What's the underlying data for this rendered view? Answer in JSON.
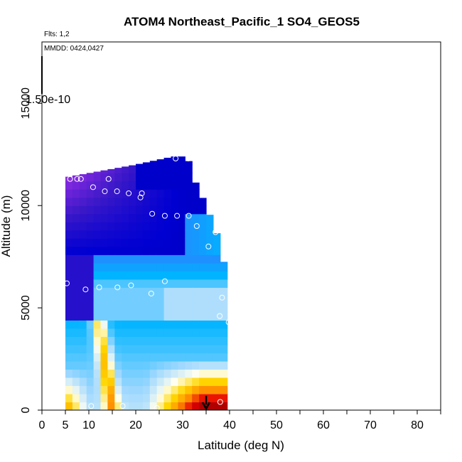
{
  "chart_data": {
    "type": "heatmap",
    "title": "ATOM4 Northeast_Pacific_1 SO4_GEOS5",
    "annotations": {
      "flights": "Flts: 1,2",
      "dates": "MMDD: 0424,0427"
    },
    "colorbar_label": "1.50e-10",
    "xlabel": "Latitude (deg N)",
    "ylabel": "Altitude (m)",
    "xlim": [
      0,
      85
    ],
    "ylim": [
      0,
      18000
    ],
    "x_ticks": [
      0,
      5,
      10,
      20,
      30,
      40,
      50,
      60,
      70,
      80
    ],
    "x_minor_ticks": [
      15,
      25,
      35,
      45,
      55,
      65,
      75,
      85
    ],
    "y_ticks": [
      0,
      5000,
      10000,
      15000
    ],
    "colormap": [
      "#000096",
      "#0000d2",
      "#3a18c8",
      "#8a2be2",
      "#1e90ff",
      "#00b4ff",
      "#a0d8ff",
      "#fffff0",
      "#ffd700",
      "#ff8c00",
      "#e60000",
      "#a00000"
    ],
    "profile_columns": [
      {
        "lat": 4.5,
        "top": 6300
      },
      {
        "lat": 5.5,
        "top": 11400
      },
      {
        "lat": 20,
        "top": 12000
      },
      {
        "lat": 28,
        "top": 12400
      },
      {
        "lat": 31,
        "top": 12400
      },
      {
        "lat": 32,
        "top": 11500
      },
      {
        "lat": 35,
        "top": 10000
      },
      {
        "lat": 37.5,
        "top": 8500
      },
      {
        "lat": 40,
        "top": 6000
      },
      {
        "lat": 40,
        "top": 4000
      },
      {
        "lat": 38,
        "top": 1100
      }
    ],
    "flight_points": [
      {
        "lat": 3.8,
        "alt": 200
      },
      {
        "lat": 4.0,
        "alt": 5800
      },
      {
        "lat": 5.3,
        "alt": 6200
      },
      {
        "lat": 6.0,
        "alt": 11300
      },
      {
        "lat": 7.5,
        "alt": 11300
      },
      {
        "lat": 8.3,
        "alt": 11300
      },
      {
        "lat": 9.3,
        "alt": 5900
      },
      {
        "lat": 10.5,
        "alt": 200
      },
      {
        "lat": 10.9,
        "alt": 10900
      },
      {
        "lat": 12.2,
        "alt": 6000
      },
      {
        "lat": 13.4,
        "alt": 10700
      },
      {
        "lat": 14.2,
        "alt": 11300
      },
      {
        "lat": 16.0,
        "alt": 10700
      },
      {
        "lat": 16.1,
        "alt": 6000
      },
      {
        "lat": 17.2,
        "alt": 200
      },
      {
        "lat": 18.5,
        "alt": 10600
      },
      {
        "lat": 19.0,
        "alt": 6100
      },
      {
        "lat": 21.0,
        "alt": 10400
      },
      {
        "lat": 21.3,
        "alt": 10600
      },
      {
        "lat": 23.3,
        "alt": 5700
      },
      {
        "lat": 23.5,
        "alt": 9600
      },
      {
        "lat": 24.5,
        "alt": 100
      },
      {
        "lat": 26.2,
        "alt": 9500
      },
      {
        "lat": 26.2,
        "alt": 6300
      },
      {
        "lat": 28.5,
        "alt": 12300
      },
      {
        "lat": 28.8,
        "alt": 9500
      },
      {
        "lat": 31.2,
        "alt": 12300
      },
      {
        "lat": 31.3,
        "alt": 9500
      },
      {
        "lat": 33.0,
        "alt": 9000
      },
      {
        "lat": 35.5,
        "alt": 8000
      },
      {
        "lat": 37.0,
        "alt": 8700
      },
      {
        "lat": 37.9,
        "alt": 4600
      },
      {
        "lat": 38.4,
        "alt": 5500
      },
      {
        "lat": 38.0,
        "alt": 400
      },
      {
        "lat": 39.8,
        "alt": 4300
      }
    ],
    "arrow": {
      "lat": 35,
      "alt_from": 700,
      "alt_to": 0
    },
    "grid": false
  }
}
